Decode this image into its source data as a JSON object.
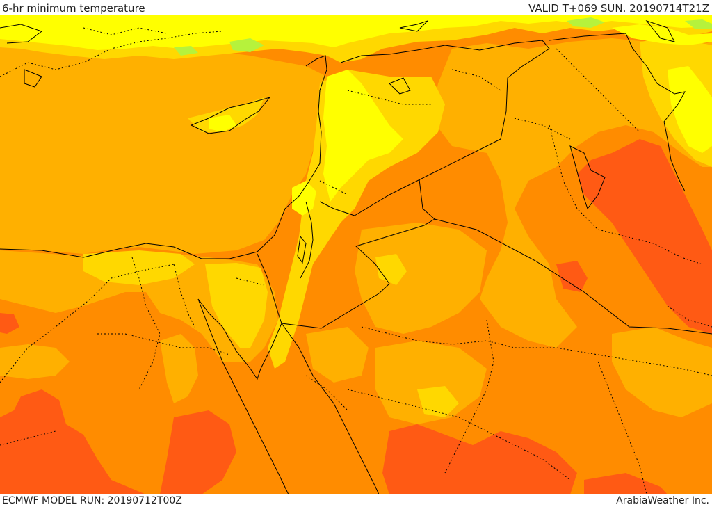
{
  "header": {
    "title": "6-hr minimum temperature",
    "valid_time": "VALID T+069 SUN. 20190714T21Z"
  },
  "footer": {
    "model_run": "ECMWF MODEL RUN: 20190712T00Z",
    "credit": "ArabiaWeather Inc."
  },
  "palette": {
    "light_green": "#b6f23c",
    "yellow": "#ffff00",
    "yellow_orange": "#ffd800",
    "light_orange": "#ffb000",
    "orange": "#ff8c00",
    "dark_orange": "#ff5a14"
  }
}
